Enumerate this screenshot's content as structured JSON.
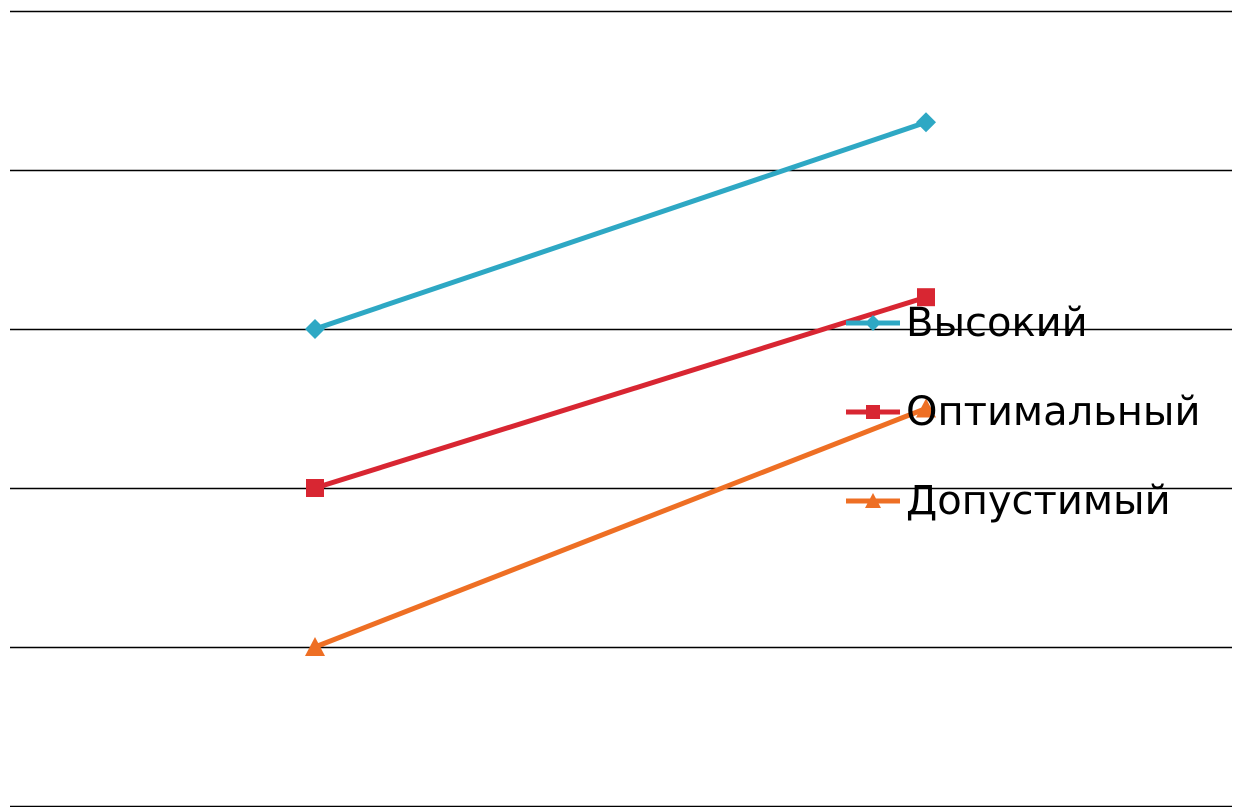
{
  "chart_data": {
    "type": "line",
    "categories": [
      "",
      ""
    ],
    "series": [
      {
        "name": "Высокий",
        "values": [
          3,
          4.3
        ],
        "color": "#2ea8c4",
        "marker": "diamond"
      },
      {
        "name": "Оптимальный",
        "values": [
          2,
          3.2
        ],
        "color": "#d82632",
        "marker": "square"
      },
      {
        "name": "Допустимый",
        "values": [
          1,
          2.5
        ],
        "color": "#ee6f24",
        "marker": "triangle"
      }
    ],
    "ylim": [
      0,
      5
    ],
    "grid": true,
    "legend_position": "right",
    "title": "",
    "xlabel": "",
    "ylabel": ""
  }
}
